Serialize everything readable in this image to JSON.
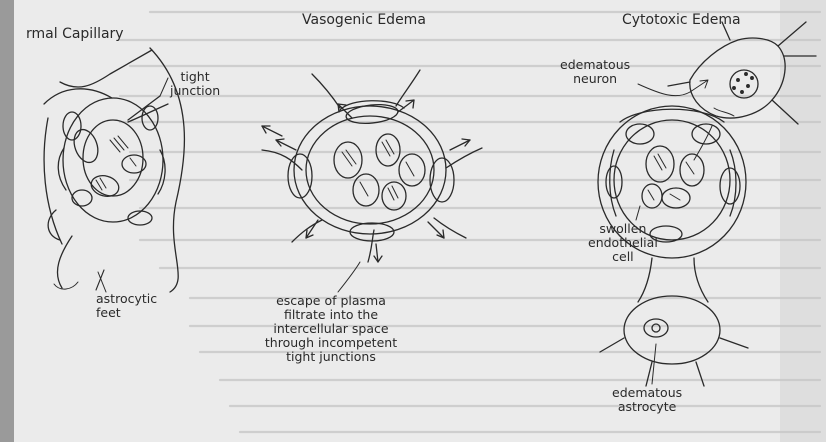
{
  "figure": {
    "panels": {
      "normal": {
        "title": "rmal Capillary",
        "labels": {
          "tight_junction": [
            "tight",
            "junction"
          ],
          "astrocytic_feet": [
            "astrocytic",
            "feet"
          ]
        }
      },
      "vasogenic": {
        "title": "Vasogenic Edema",
        "caption_lines": [
          "escape of plasma",
          "filtrate into the",
          "intercellular space",
          "through incompetent",
          "tight junctions"
        ]
      },
      "cytotoxic": {
        "title": "Cytotoxic Edema",
        "labels": {
          "edematous_neuron": [
            "edematous",
            "neuron"
          ],
          "swollen_endothelial_cell": [
            "swollen",
            "endothelial",
            "cell"
          ],
          "edematous_astrocyte": [
            "edematous",
            "astrocyte"
          ]
        }
      }
    },
    "colors": {
      "ink": "#2a2a2a",
      "paper": "#ebebeb",
      "bleed": "#c4c4c4"
    }
  }
}
